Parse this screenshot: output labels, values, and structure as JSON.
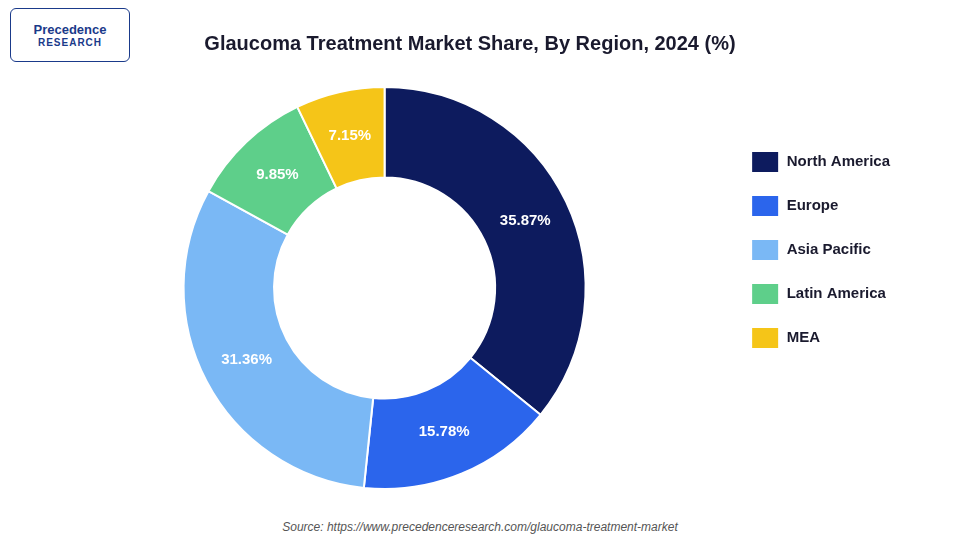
{
  "chart_data": {
    "type": "doughnut",
    "title": "Glaucoma Treatment Market Share, By Region, 2024 (%)",
    "categories": [
      "North America",
      "Europe",
      "Asia Pacific",
      "Latin America",
      "MEA"
    ],
    "values": [
      35.87,
      15.78,
      31.36,
      9.85,
      7.15
    ],
    "value_labels": [
      "35.87%",
      "15.78%",
      "31.36%",
      "9.85%",
      "7.15%"
    ],
    "colors": [
      "#0d1b5e",
      "#2b65ec",
      "#7ab8f5",
      "#5ecf8a",
      "#f5c518"
    ],
    "data_labels": true,
    "legend": "right",
    "annotations": [
      "Precedence",
      "RESEARCH",
      "Source: https://www.precedenceresearch.com/glaucoma-treatment-market"
    ]
  }
}
